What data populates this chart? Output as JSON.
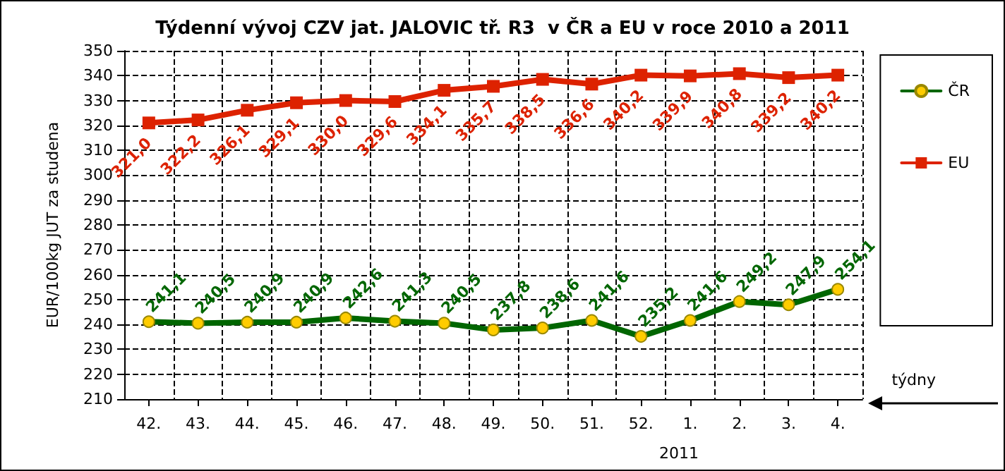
{
  "chart_data": {
    "type": "line",
    "title": "Týdenní vývoj CZV jat. JALOVIC tř. R3  v ČR a EU v roce 2010 a 2011",
    "ylabel": "EUR/100kg JUT za studena",
    "categories": [
      "42.",
      "43.",
      "44.",
      "45.",
      "46.",
      "47.",
      "48.",
      "49.",
      "50.",
      "51.",
      "52.",
      "1.",
      "2.",
      "3.",
      "4."
    ],
    "series": [
      {
        "name": "ČR",
        "color": "#006600",
        "marker": "circle",
        "values": [
          241.1,
          240.5,
          240.9,
          240.9,
          242.6,
          241.3,
          240.5,
          237.8,
          238.6,
          241.6,
          235.2,
          241.6,
          249.2,
          247.9,
          254.1
        ],
        "value_labels": [
          "241,1",
          "240,5",
          "240,9",
          "240,9",
          "242,6",
          "241,3",
          "240,5",
          "237,8",
          "238,6",
          "241,6",
          "235,2",
          "241,6",
          "249,2",
          "247,9",
          "254,1"
        ]
      },
      {
        "name": "EU",
        "color": "#dd2200",
        "marker": "square",
        "values": [
          321.0,
          322.2,
          326.1,
          329.1,
          330.0,
          329.6,
          334.1,
          335.7,
          338.5,
          336.6,
          340.2,
          339.9,
          340.8,
          339.2,
          340.2
        ],
        "value_labels": [
          "321,0",
          "322,2",
          "326,1",
          "329,1",
          "330,0",
          "329,6",
          "334,1",
          "335,7",
          "338,5",
          "336,6",
          "340,2",
          "339,9",
          "340,8",
          "339,2",
          "340,2"
        ]
      }
    ],
    "ylim": [
      210,
      350
    ],
    "yticks": [
      210,
      220,
      230,
      240,
      250,
      260,
      270,
      280,
      290,
      300,
      310,
      320,
      330,
      340,
      350
    ],
    "grid": true,
    "legend": "right",
    "line_style": "solid",
    "annotations": [
      "2011",
      "týdny"
    ]
  }
}
